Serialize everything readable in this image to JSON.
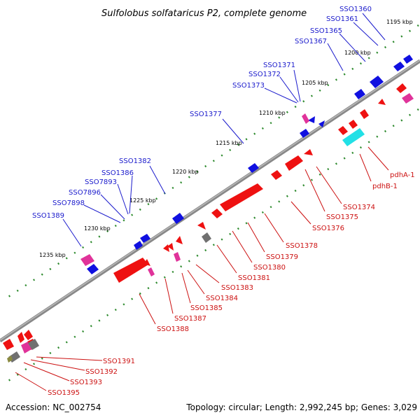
{
  "title": "Sulfolobus solfataricus P2, complete genome",
  "accession": "Accession: NC_002754",
  "summary": "Topology: circular; Length: 2,992,245 bp; Genes: 3,029",
  "ticks": [
    "1195 kbp",
    "1200 kbp",
    "1205 kbp",
    "1210 kbp",
    "1215 kbp",
    "1220 kbp",
    "1225 kbp",
    "1230 kbp",
    "1235 kbp"
  ],
  "top_strand_genes": [
    "SSO1360",
    "SSO1361",
    "SSO1365",
    "SSO1367",
    "SSO1371",
    "SSO1372",
    "SSO1373",
    "SSO1377",
    "SSO1382",
    "SSO1386",
    "SSO7893",
    "SSO7896",
    "SSO7898",
    "SSO1389"
  ],
  "bottom_strand_genes": [
    "pdhA-1",
    "pdhB-1",
    "SSO1374",
    "SSO1375",
    "SSO1376",
    "SSO1378",
    "SSO1379",
    "SSO1380",
    "SSO1381",
    "SSO1383",
    "SSO1384",
    "SSO1385",
    "SSO1387",
    "SSO1388",
    "SSO1391",
    "SSO1392",
    "SSO1393",
    "SSO1395"
  ],
  "colors": {
    "forward": "#1010e0",
    "reverse": "#ee1111",
    "rna": "#e0339a",
    "highlight": "#22e0e6",
    "unknown": "#707070",
    "backbone": "#707070",
    "tick_dots": "#2d8a2d"
  }
}
